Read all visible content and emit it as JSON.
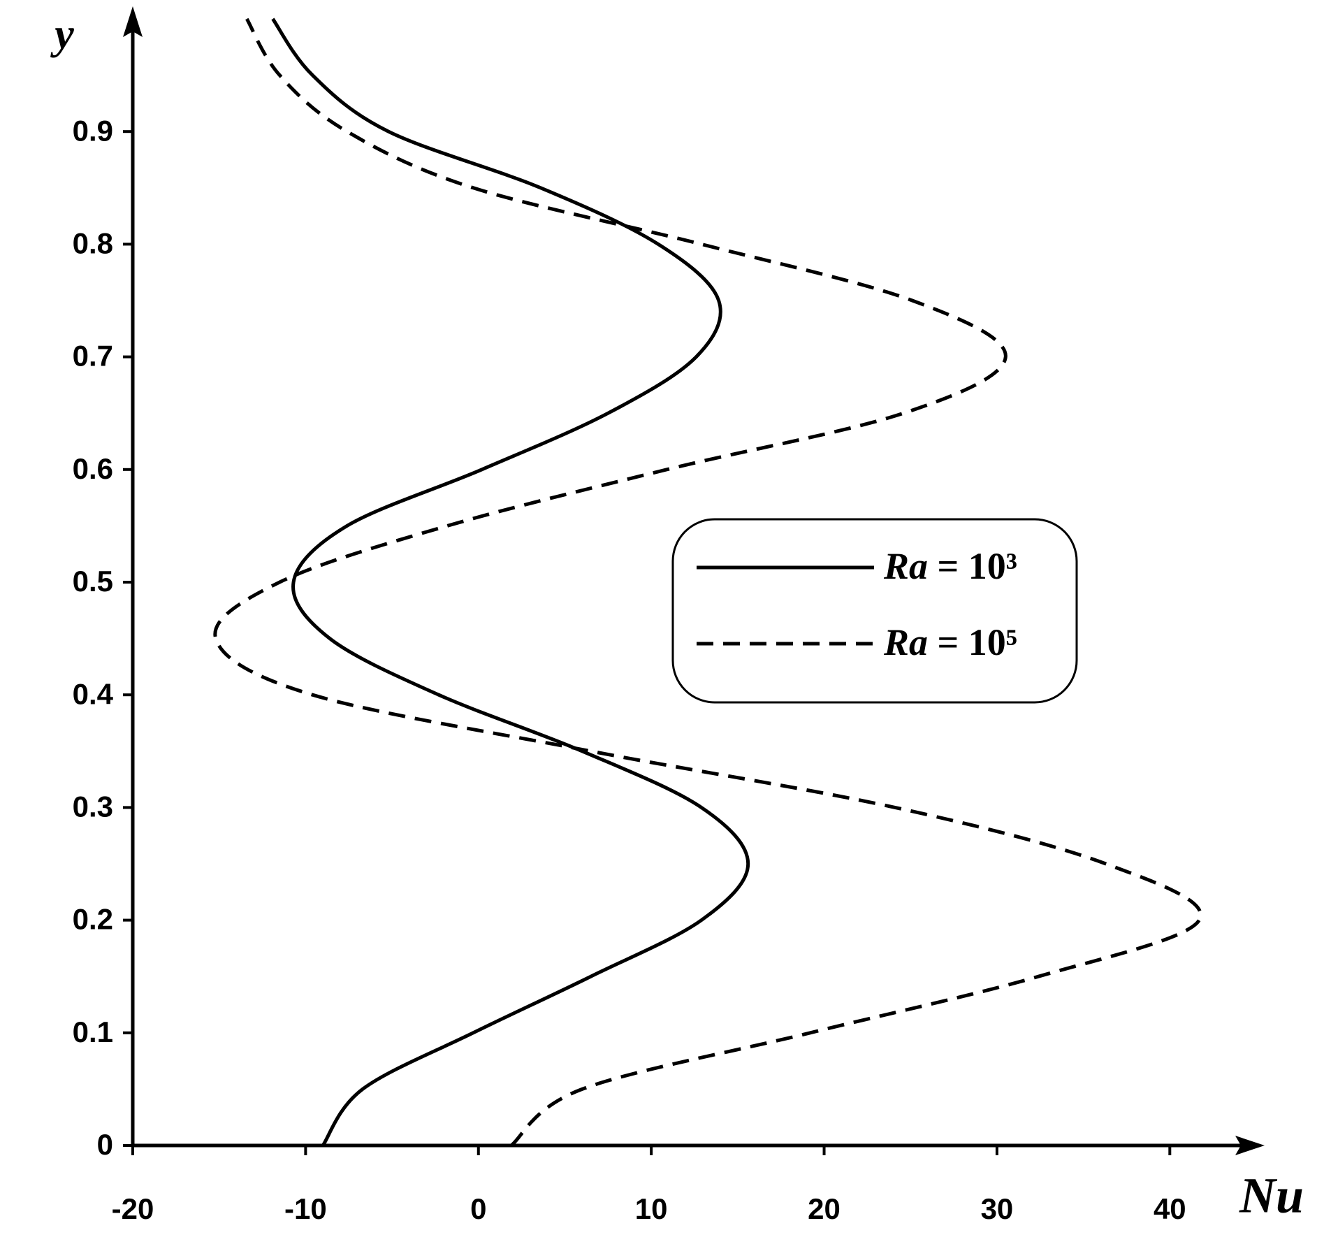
{
  "chart_data": {
    "type": "line",
    "x_label": "Nu",
    "y_label": "y",
    "y": [
      0,
      0.05,
      0.1,
      0.15,
      0.2,
      0.25,
      0.3,
      0.35,
      0.4,
      0.45,
      0.5,
      0.55,
      0.6,
      0.65,
      0.7,
      0.75,
      0.8,
      0.85,
      0.9,
      0.95,
      1.0
    ],
    "series": [
      {
        "name": "Ra = 10³",
        "color": "#000000",
        "dash": false,
        "values": [
          -9.0,
          -6.7,
          -0.3,
          6.5,
          12.9,
          15.6,
          12.9,
          6.0,
          -2.3,
          -8.6,
          -10.7,
          -7.6,
          0.2,
          7.5,
          12.6,
          13.9,
          10.4,
          3.6,
          -5.2,
          -9.6,
          -11.9
        ]
      },
      {
        "name": "Ra = 10⁵",
        "color": "#000000",
        "dash": true,
        "values": [
          1.9,
          6.0,
          19.2,
          32.4,
          41.7,
          36.3,
          24.1,
          6.5,
          -9.6,
          -15.2,
          -11.5,
          -1.8,
          10.9,
          24.6,
          30.5,
          25.1,
          12.9,
          -0.3,
          -7.6,
          -11.5,
          -13.4
        ]
      }
    ],
    "xlim": [
      -20,
      45
    ],
    "ylim": [
      0,
      1.0
    ],
    "xticks": [
      -20,
      -10,
      0,
      10,
      20,
      30,
      40
    ],
    "yticks": [
      0,
      0.1,
      0.2,
      0.3,
      0.4,
      0.5,
      0.6,
      0.7,
      0.8,
      0.9
    ],
    "grid": false
  }
}
